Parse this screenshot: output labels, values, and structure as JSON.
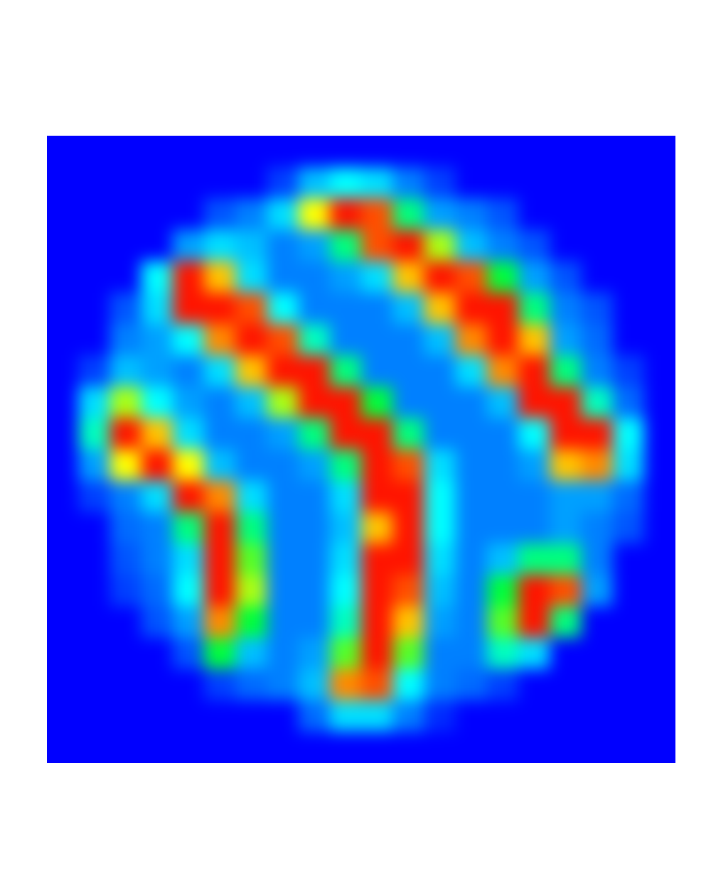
{
  "chart_data": {
    "type": "heatmap",
    "tick_labels": false,
    "zlim": [
      0,
      1
    ],
    "cells": [
      [
        0,
        0,
        0,
        0,
        0,
        0,
        0,
        0,
        0,
        0,
        0,
        0,
        0,
        0,
        0,
        0,
        0,
        0,
        0,
        0
      ],
      [
        0,
        0,
        0,
        0,
        0,
        0,
        0,
        0.15,
        0.4,
        0.5,
        0.45,
        0.3,
        0.15,
        0,
        0,
        0,
        0,
        0,
        0,
        0
      ],
      [
        0,
        0,
        0,
        0,
        0,
        0.2,
        0.3,
        0.45,
        0.8,
        1,
        0.95,
        0.6,
        0.35,
        0.3,
        0.2,
        0,
        0,
        0,
        0,
        0
      ],
      [
        0,
        0,
        0,
        0,
        0.35,
        0.45,
        0.4,
        0.3,
        0.35,
        0.6,
        0.95,
        1,
        0.75,
        0.4,
        0.3,
        0.2,
        0,
        0,
        0,
        0
      ],
      [
        0,
        0,
        0,
        0.5,
        1,
        0.85,
        0.45,
        0.3,
        0.3,
        0.35,
        0.45,
        0.85,
        1,
        0.95,
        0.65,
        0.35,
        0.2,
        0,
        0,
        0
      ],
      [
        0,
        0,
        0.2,
        0.45,
        1,
        1,
        0.95,
        0.5,
        0.3,
        0.3,
        0.3,
        0.4,
        0.85,
        1,
        1,
        0.6,
        0.3,
        0.2,
        0,
        0
      ],
      [
        0,
        0,
        0.3,
        0.35,
        0.5,
        0.9,
        1,
        0.95,
        0.55,
        0.3,
        0.3,
        0.3,
        0.4,
        0.9,
        1,
        0.85,
        0.35,
        0.25,
        0,
        0
      ],
      [
        0,
        0.15,
        0.4,
        0.35,
        0.3,
        0.45,
        0.85,
        1,
        1,
        0.6,
        0.3,
        0.3,
        0.3,
        0.45,
        0.9,
        1,
        0.6,
        0.3,
        0.15,
        0
      ],
      [
        0,
        0.45,
        0.75,
        0.5,
        0.35,
        0.3,
        0.4,
        0.75,
        1,
        1,
        0.65,
        0.3,
        0.3,
        0.3,
        0.4,
        1,
        1,
        0.55,
        0.25,
        0
      ],
      [
        0,
        0.55,
        1,
        0.85,
        0.45,
        0.3,
        0.3,
        0.35,
        0.6,
        1,
        1,
        0.6,
        0.3,
        0.3,
        0.3,
        0.5,
        1,
        1,
        0.5,
        0
      ],
      [
        0,
        0.35,
        0.8,
        1,
        0.8,
        0.4,
        0.3,
        0.3,
        0.35,
        0.6,
        1,
        0.95,
        0.45,
        0.3,
        0.3,
        0.35,
        0.85,
        0.9,
        0.45,
        0
      ],
      [
        0,
        0.15,
        0.3,
        0.45,
        1,
        0.9,
        0.45,
        0.3,
        0.3,
        0.45,
        1,
        1,
        0.5,
        0.3,
        0.3,
        0.3,
        0.35,
        0.35,
        0.25,
        0
      ],
      [
        0,
        0,
        0.25,
        0.3,
        0.6,
        1,
        0.6,
        0.3,
        0.3,
        0.4,
        0.85,
        1,
        0.5,
        0.3,
        0.3,
        0.3,
        0.35,
        0.3,
        0.2,
        0
      ],
      [
        0,
        0,
        0.2,
        0.3,
        0.45,
        1,
        0.7,
        0.3,
        0.3,
        0.45,
        1,
        1,
        0.45,
        0.3,
        0.4,
        0.6,
        0.6,
        0.3,
        0,
        0
      ],
      [
        0,
        0,
        0.15,
        0.25,
        0.5,
        1,
        0.75,
        0.3,
        0.3,
        0.5,
        1,
        0.95,
        0.4,
        0.3,
        0.65,
        1,
        0.95,
        0.35,
        0,
        0
      ],
      [
        0,
        0,
        0,
        0.2,
        0.35,
        0.9,
        0.65,
        0.3,
        0.3,
        0.55,
        1,
        0.85,
        0.35,
        0.3,
        0.7,
        1,
        0.6,
        0,
        0,
        0
      ],
      [
        0,
        0,
        0,
        0,
        0.2,
        0.65,
        0.4,
        0.3,
        0.35,
        0.7,
        1,
        0.7,
        0.3,
        0.3,
        0.55,
        0.45,
        0,
        0,
        0,
        0
      ],
      [
        0,
        0,
        0,
        0,
        0,
        0.15,
        0.25,
        0.3,
        0.4,
        0.9,
        0.95,
        0.5,
        0.3,
        0.25,
        0.15,
        0,
        0,
        0,
        0,
        0
      ],
      [
        0,
        0,
        0,
        0,
        0,
        0,
        0,
        0,
        0.25,
        0.45,
        0.45,
        0.3,
        0.1,
        0,
        0,
        0,
        0,
        0,
        0,
        0
      ],
      [
        0,
        0,
        0,
        0,
        0,
        0,
        0,
        0,
        0,
        0,
        0,
        0,
        0,
        0,
        0,
        0,
        0,
        0,
        0,
        0
      ]
    ]
  }
}
